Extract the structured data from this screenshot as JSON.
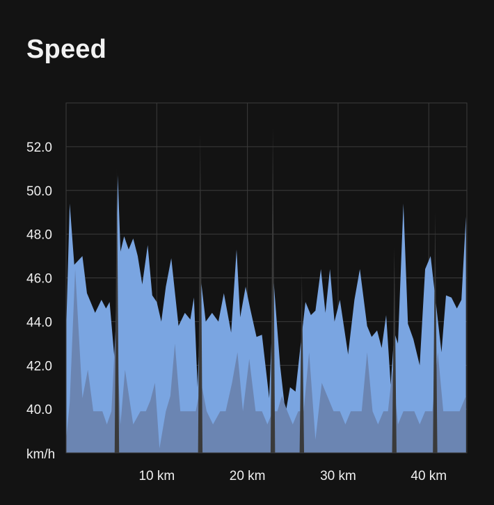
{
  "title": "Speed",
  "chart_data": {
    "type": "area",
    "title": "Speed",
    "ylabel": "km/h",
    "xlabel": "",
    "xlim": [
      0,
      44.2
    ],
    "ylim": [
      38.0,
      54.0
    ],
    "y_ticks": [
      40.0,
      42.0,
      44.0,
      46.0,
      48.0,
      50.0,
      52.0
    ],
    "y_tick_labels": [
      "40.0",
      "42.0",
      "44.0",
      "46.0",
      "48.0",
      "50.0",
      "52.0"
    ],
    "x_ticks": [
      10,
      20,
      30,
      40
    ],
    "x_tick_labels": [
      "10 km",
      "20 km",
      "30 km",
      "40 km"
    ],
    "y_unit_label": "km/h",
    "grid": true,
    "colors": {
      "upper_fill": "#7aa5e1",
      "lower_fill": "#6b85b2",
      "dip": "#3a3a3a",
      "grid": "#3c3c3c",
      "background": "#131313"
    },
    "series": [
      {
        "x": [
          0,
          0.4,
          0.9,
          1.8,
          2.3,
          3.2,
          3.9,
          4.4,
          4.8,
          5.4,
          5.7,
          6.0,
          6.4,
          6.9,
          7.4,
          7.9,
          8.4,
          9.0,
          9.5,
          10.0,
          10.5,
          11.0,
          11.6,
          12.4,
          13.1,
          13.7,
          14.1,
          14.5,
          14.9,
          15.4,
          16.1,
          16.8,
          17.4,
          18.2,
          18.8,
          19.2,
          19.8,
          20.3,
          21.0,
          21.6,
          22.4,
          22.9,
          23.6,
          24.2,
          24.7,
          25.3,
          25.8,
          26.4,
          27.0,
          27.5,
          28.1,
          28.6,
          29.1,
          29.6,
          30.2,
          31.1,
          31.8,
          32.4,
          33.2,
          33.7,
          34.3,
          34.8,
          35.3,
          35.8,
          36.2,
          36.6,
          37.2,
          37.7,
          38.3,
          39.0,
          39.6,
          40.2,
          40.8,
          41.4,
          41.9,
          42.5,
          43.1,
          43.6,
          44.1
        ],
        "values": [
          43.5,
          49.4,
          46.6,
          47.0,
          45.3,
          44.4,
          45.0,
          44.6,
          44.9,
          42.0,
          50.7,
          47.2,
          47.9,
          47.3,
          47.8,
          47.0,
          45.7,
          47.5,
          45.2,
          44.9,
          44.0,
          45.6,
          46.9,
          43.8,
          44.4,
          44.1,
          45.1,
          41.0,
          45.8,
          44.0,
          44.4,
          44.0,
          45.3,
          43.5,
          47.3,
          44.2,
          45.6,
          44.6,
          43.3,
          43.4,
          40.5,
          45.8,
          42.0,
          39.8,
          41.0,
          40.8,
          42.7,
          44.9,
          44.3,
          44.5,
          46.4,
          44.4,
          46.4,
          44.0,
          45.0,
          42.5,
          45.0,
          46.4,
          43.8,
          43.3,
          43.6,
          42.8,
          44.3,
          41.1,
          43.5,
          43.0,
          49.4,
          43.9,
          43.2,
          42.0,
          46.4,
          47.0,
          44.8,
          42.6,
          45.2,
          45.1,
          44.6,
          45.0,
          48.8
        ]
      },
      {
        "x": [
          0,
          0.4,
          1.0,
          1.8,
          2.4,
          3.0,
          4.0,
          4.5,
          5.0,
          5.5,
          6.0,
          6.5,
          7.4,
          8.2,
          8.8,
          9.3,
          9.8,
          10.3,
          11.0,
          11.5,
          12.0,
          12.6,
          13.6,
          14.3,
          14.9,
          15.5,
          16.2,
          17.0,
          17.6,
          18.3,
          18.9,
          19.5,
          20.2,
          20.9,
          21.6,
          22.2,
          22.8,
          23.3,
          23.8,
          24.4,
          25.0,
          25.6,
          26.2,
          26.8,
          27.5,
          28.2,
          28.8,
          29.5,
          30.2,
          30.8,
          31.4,
          32.0,
          32.6,
          33.2,
          33.8,
          34.4,
          35.0,
          35.5,
          36.0,
          36.6,
          37.2,
          37.8,
          38.4,
          39.0,
          39.6,
          40.4,
          41.0,
          41.6,
          42.2,
          42.8,
          43.4,
          44.1
        ],
        "values": [
          38.6,
          40.3,
          46.4,
          40.5,
          41.8,
          39.9,
          39.9,
          39.3,
          39.9,
          44.0,
          39.3,
          41.8,
          39.3,
          39.9,
          39.9,
          40.4,
          41.2,
          38.2,
          39.9,
          40.6,
          43.0,
          39.9,
          39.9,
          39.9,
          41.2,
          39.9,
          39.3,
          39.9,
          39.9,
          41.2,
          42.6,
          39.9,
          42.3,
          39.9,
          39.9,
          39.3,
          39.9,
          39.9,
          40.6,
          39.9,
          39.3,
          39.9,
          39.9,
          42.6,
          38.6,
          41.2,
          40.6,
          39.9,
          39.9,
          39.3,
          39.9,
          39.9,
          39.9,
          42.6,
          39.9,
          39.3,
          39.9,
          39.9,
          41.8,
          39.3,
          39.9,
          39.9,
          39.9,
          39.3,
          39.9,
          39.9,
          42.6,
          39.9,
          39.9,
          39.9,
          39.9,
          40.6
        ]
      },
      {
        "x": [
          5.6,
          14.8,
          22.8,
          26.0,
          36.2,
          40.7
        ],
        "values": [
          51.0,
          52.6,
          52.9,
          46.2,
          47.4,
          49.0
        ]
      }
    ]
  }
}
